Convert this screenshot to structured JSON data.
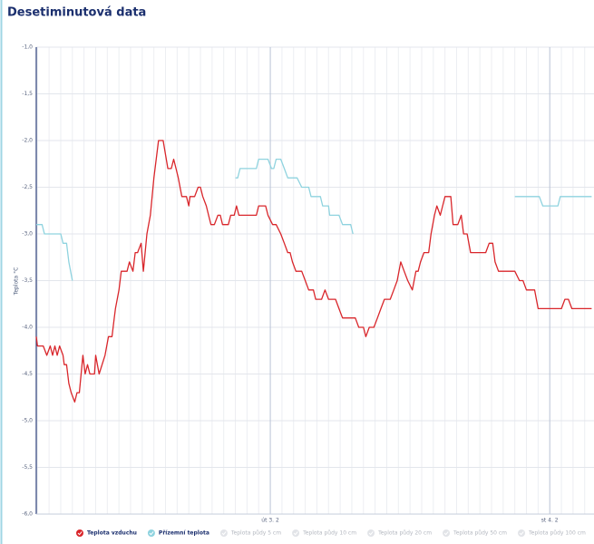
{
  "chart_data": {
    "type": "line",
    "title": "Desetiminutová data",
    "ylabel": "Teplota °C",
    "ylim": [
      -6,
      -1
    ],
    "yticks": [
      {
        "value": -6,
        "label": "-6,0"
      },
      {
        "value": -5.5,
        "label": "-5,5"
      },
      {
        "value": -5,
        "label": "-5,0"
      },
      {
        "value": -4.5,
        "label": "-4,5"
      },
      {
        "value": -4,
        "label": "-4,0"
      },
      {
        "value": -3.5,
        "label": "-3,5"
      },
      {
        "value": -3,
        "label": "-3,0"
      },
      {
        "value": -2.5,
        "label": "-2,5"
      },
      {
        "value": -2,
        "label": "-2,0"
      },
      {
        "value": -1.5,
        "label": "-1,5"
      },
      {
        "value": -1,
        "label": "-1,0"
      }
    ],
    "xlim": [
      -20.1,
      27.8
    ],
    "xticks": [
      {
        "value": 0,
        "label": "út 3. 2"
      },
      {
        "value": 24,
        "label": "st 4. 2"
      }
    ],
    "x_minor_ticks": [
      -20,
      -19,
      -18,
      -17,
      -16,
      -15,
      -14,
      -13,
      -12,
      -11,
      -10,
      -9,
      -8,
      -7,
      -6,
      -5,
      -4,
      -3,
      -2,
      -1,
      1,
      2,
      3,
      4,
      5,
      6,
      7,
      8,
      9,
      10,
      11,
      12,
      13,
      14,
      15,
      16,
      17,
      18,
      19,
      20,
      21,
      22,
      23,
      25,
      26,
      27
    ],
    "grid": true,
    "series": [
      {
        "name": "Teplota vzduchu",
        "color": "#d9262b",
        "visible": true,
        "x": [
          -20.1,
          -20.0,
          -19.5,
          -19.2,
          -18.9,
          -18.7,
          -18.5,
          -18.3,
          -18.1,
          -17.8,
          -17.7,
          -17.5,
          -17.3,
          -17.1,
          -16.8,
          -16.6,
          -16.4,
          -16.1,
          -15.9,
          -15.7,
          -15.5,
          -15.1,
          -15.0,
          -14.7,
          -14.2,
          -13.9,
          -13.6,
          -13.4,
          -13.3,
          -13.0,
          -12.8,
          -12.3,
          -12.1,
          -11.8,
          -11.6,
          -11.4,
          -11.1,
          -10.9,
          -10.6,
          -10.3,
          -10.0,
          -9.6,
          -9.2,
          -8.8,
          -8.5,
          -8.3,
          -8.1,
          -7.9,
          -7.6,
          -7.2,
          -7.0,
          -6.9,
          -6.5,
          -6.2,
          -6.0,
          -5.8,
          -5.5,
          -5.3,
          -5.1,
          -4.8,
          -4.5,
          -4.3,
          -4.1,
          -3.6,
          -3.4,
          -3.1,
          -2.9,
          -2.7,
          -1.2,
          -1.0,
          -0.4,
          -0.2,
          0.2,
          0.5,
          0.9,
          1.2,
          1.5,
          1.7,
          1.9,
          2.2,
          2.7,
          3.0,
          3.3,
          3.7,
          3.9,
          4.4,
          4.7,
          5.0,
          5.6,
          5.9,
          6.2,
          7.3,
          7.6,
          8.0,
          8.2,
          8.5,
          8.9,
          9.2,
          9.5,
          9.8,
          10.3,
          10.6,
          10.9,
          11.2,
          11.5,
          11.8,
          12.2,
          12.5,
          12.7,
          12.9,
          13.2,
          13.6,
          13.8,
          14.1,
          14.3,
          14.6,
          14.8,
          15.0,
          15.5,
          15.7,
          16.1,
          16.4,
          16.6,
          16.9,
          17.2,
          18.5,
          18.8,
          19.1,
          19.3,
          19.6,
          21.0,
          21.4,
          21.7,
          22.0,
          22.7,
          23.0,
          25.0,
          25.3,
          25.6,
          25.9,
          27.6
        ],
        "values": [
          -4.1,
          -4.2,
          -4.2,
          -4.3,
          -4.2,
          -4.3,
          -4.2,
          -4.3,
          -4.2,
          -4.3,
          -4.4,
          -4.4,
          -4.6,
          -4.7,
          -4.8,
          -4.7,
          -4.7,
          -4.3,
          -4.5,
          -4.4,
          -4.5,
          -4.5,
          -4.3,
          -4.5,
          -4.3,
          -4.1,
          -4.1,
          -3.9,
          -3.8,
          -3.6,
          -3.4,
          -3.4,
          -3.3,
          -3.4,
          -3.2,
          -3.2,
          -3.1,
          -3.4,
          -3.0,
          -2.8,
          -2.4,
          -2.0,
          -2.0,
          -2.3,
          -2.3,
          -2.2,
          -2.3,
          -2.4,
          -2.6,
          -2.6,
          -2.7,
          -2.6,
          -2.6,
          -2.5,
          -2.5,
          -2.6,
          -2.7,
          -2.8,
          -2.9,
          -2.9,
          -2.8,
          -2.8,
          -2.9,
          -2.9,
          -2.8,
          -2.8,
          -2.7,
          -2.8,
          -2.8,
          -2.7,
          -2.7,
          -2.8,
          -2.9,
          -2.9,
          -3.0,
          -3.1,
          -3.2,
          -3.2,
          -3.3,
          -3.4,
          -3.4,
          -3.5,
          -3.6,
          -3.6,
          -3.7,
          -3.7,
          -3.6,
          -3.7,
          -3.7,
          -3.8,
          -3.9,
          -3.9,
          -4.0,
          -4.0,
          -4.1,
          -4.0,
          -4.0,
          -3.9,
          -3.8,
          -3.7,
          -3.7,
          -3.6,
          -3.5,
          -3.3,
          -3.4,
          -3.5,
          -3.6,
          -3.4,
          -3.4,
          -3.3,
          -3.2,
          -3.2,
          -3.0,
          -2.8,
          -2.7,
          -2.8,
          -2.7,
          -2.6,
          -2.6,
          -2.9,
          -2.9,
          -2.8,
          -3.0,
          -3.0,
          -3.2,
          -3.2,
          -3.1,
          -3.1,
          -3.3,
          -3.4,
          -3.4,
          -3.5,
          -3.5,
          -3.6,
          -3.6,
          -3.8,
          -3.8,
          -3.7,
          -3.7,
          -3.8,
          -3.8
        ]
      },
      {
        "name": "Přízemní teplota",
        "color": "#8fd3df",
        "visible": true,
        "x": [
          -20.1,
          -19.6,
          -19.4,
          -18.0,
          -17.8,
          -17.5,
          -17.3,
          -17.0,
          null,
          -3.0,
          -2.8,
          -2.6,
          -1.2,
          -1.0,
          -0.2,
          0.1,
          0.3,
          0.5,
          0.9,
          1.2,
          1.5,
          2.3,
          2.7,
          3.3,
          3.5,
          4.3,
          4.5,
          5.0,
          5.1,
          5.9,
          6.2,
          6.9,
          7.1,
          null,
          21.0,
          23.1,
          23.4,
          24.7,
          24.9,
          27.6
        ],
        "values": [
          -2.9,
          -2.9,
          -3.0,
          -3.0,
          -3.1,
          -3.1,
          -3.3,
          -3.5,
          null,
          -2.4,
          -2.4,
          -2.3,
          -2.3,
          -2.2,
          -2.2,
          -2.3,
          -2.3,
          -2.2,
          -2.2,
          -2.3,
          -2.4,
          -2.4,
          -2.5,
          -2.5,
          -2.6,
          -2.6,
          -2.7,
          -2.7,
          -2.8,
          -2.8,
          -2.9,
          -2.9,
          -3.0,
          null,
          -2.6,
          -2.6,
          -2.7,
          -2.7,
          -2.6,
          -2.6
        ]
      },
      {
        "name": "Teplota půdy 5 cm",
        "visible": false,
        "x": [],
        "values": []
      },
      {
        "name": "Teplota půdy 10 cm",
        "visible": false,
        "x": [],
        "values": []
      },
      {
        "name": "Teplota půdy 20 cm",
        "visible": false,
        "x": [],
        "values": []
      },
      {
        "name": "Teplota půdy 50 cm",
        "visible": false,
        "x": [],
        "values": []
      },
      {
        "name": "Teplota půdy 100 cm",
        "visible": false,
        "x": [],
        "values": []
      }
    ]
  }
}
